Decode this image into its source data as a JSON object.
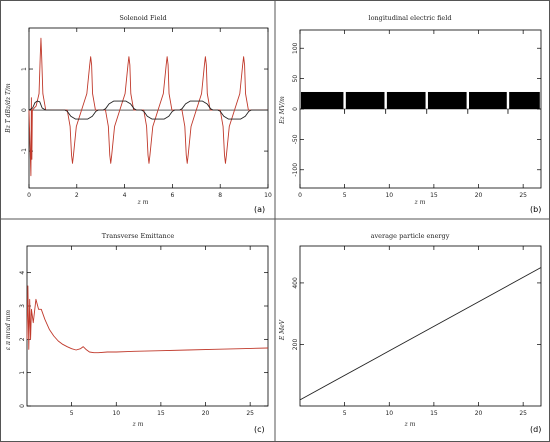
{
  "figure": {
    "frame_color": "#555555"
  },
  "chart_data": [
    {
      "type": "line",
      "panel": "a",
      "title": "Solenoid Field",
      "xlabel": "z m",
      "ylabel": "Bz T  dBz/dz T/m",
      "xlim": [
        0,
        10
      ],
      "ylim": [
        -1.9,
        2.0
      ],
      "xticks": [
        0,
        2,
        4,
        6,
        8,
        10
      ],
      "yticks": [
        -1,
        0,
        1
      ],
      "grid": false,
      "series": [
        {
          "color": "#c0392b",
          "x": [
            0.0,
            0.08,
            0.1,
            0.12,
            0.14,
            0.3,
            0.42,
            0.47,
            0.5,
            0.53,
            0.58,
            0.7,
            1.6,
            1.72,
            1.78,
            1.82,
            1.86,
            1.98,
            2.2,
            2.42,
            2.54,
            2.58,
            2.62,
            2.66,
            2.78,
            3.2,
            3.32,
            3.38,
            3.42,
            3.46,
            3.58,
            3.8,
            4.02,
            4.14,
            4.18,
            4.22,
            4.26,
            4.38,
            4.8,
            4.92,
            4.98,
            5.02,
            5.06,
            5.18,
            5.4,
            5.62,
            5.74,
            5.78,
            5.82,
            5.86,
            5.98,
            6.4,
            6.52,
            6.58,
            6.62,
            6.66,
            6.78,
            7.0,
            7.22,
            7.34,
            7.38,
            7.42,
            7.46,
            7.58,
            8.0,
            8.12,
            8.18,
            8.22,
            8.26,
            8.38,
            8.6,
            8.82,
            8.94,
            8.98,
            9.02,
            9.06,
            9.18,
            10.0
          ],
          "y": [
            0.0,
            -1.6,
            0.3,
            -1.2,
            0.0,
            0.1,
            0.4,
            1.3,
            1.75,
            1.3,
            0.4,
            0.0,
            0.0,
            -0.4,
            -1.1,
            -1.3,
            -1.1,
            -0.4,
            0.0,
            0.4,
            1.1,
            1.3,
            1.1,
            0.4,
            0.0,
            0.0,
            -0.4,
            -1.1,
            -1.3,
            -1.1,
            -0.4,
            0.0,
            0.4,
            1.1,
            1.3,
            1.1,
            0.4,
            0.0,
            0.0,
            -0.4,
            -1.1,
            -1.3,
            -1.1,
            -0.4,
            0.0,
            0.4,
            1.1,
            1.3,
            1.1,
            0.4,
            0.0,
            0.0,
            -0.4,
            -1.1,
            -1.3,
            -1.1,
            -0.4,
            0.0,
            0.4,
            1.1,
            1.3,
            1.1,
            0.4,
            0.0,
            0.0,
            -0.4,
            -1.1,
            -1.3,
            -1.1,
            -0.4,
            0.0,
            0.4,
            1.1,
            1.3,
            1.1,
            0.4,
            0.0,
            0.0
          ]
        },
        {
          "color": "#222222",
          "x": [
            0.0,
            0.15,
            0.25,
            0.35,
            0.45,
            0.55,
            0.7,
            1.5,
            1.6,
            1.75,
            1.95,
            2.45,
            2.65,
            2.8,
            2.9,
            3.1,
            3.2,
            3.35,
            3.55,
            4.05,
            4.25,
            4.4,
            4.5,
            4.7,
            4.8,
            4.95,
            5.15,
            5.65,
            5.85,
            6.0,
            6.1,
            6.3,
            6.4,
            6.55,
            6.75,
            7.25,
            7.45,
            7.6,
            7.7,
            7.9,
            8.0,
            8.15,
            8.35,
            8.85,
            9.05,
            9.2,
            9.3,
            10.0
          ],
          "y": [
            0.0,
            0.05,
            0.18,
            0.22,
            0.2,
            0.05,
            0.0,
            0.0,
            -0.03,
            -0.15,
            -0.22,
            -0.22,
            -0.15,
            -0.03,
            0.0,
            0.0,
            0.03,
            0.15,
            0.22,
            0.22,
            0.15,
            0.03,
            0.0,
            0.0,
            -0.03,
            -0.15,
            -0.22,
            -0.22,
            -0.15,
            -0.03,
            0.0,
            0.0,
            0.03,
            0.15,
            0.22,
            0.22,
            0.15,
            0.03,
            0.0,
            0.0,
            -0.03,
            -0.15,
            -0.22,
            -0.22,
            -0.15,
            -0.03,
            0.0,
            0.0
          ]
        }
      ]
    },
    {
      "type": "area",
      "panel": "b",
      "title": "longitudinal electric field",
      "xlabel": "z m",
      "ylabel": "Ez MV/m",
      "xlim": [
        0,
        27
      ],
      "ylim": [
        -130,
        130
      ],
      "xticks": [
        0,
        5,
        10,
        15,
        20,
        25
      ],
      "yticks": [
        -100,
        -50,
        0,
        50,
        100
      ],
      "grid": false,
      "band_low": 0,
      "band_high": 27,
      "gaps": [
        5,
        9.6,
        14.2,
        18.8,
        23.3
      ],
      "series": [
        {
          "color": "#000000"
        }
      ]
    },
    {
      "type": "line",
      "panel": "c",
      "title": "Transverse Emittance",
      "xlabel": "z m",
      "ylabel": "ε π mrad mm",
      "xlim": [
        0,
        27
      ],
      "ylim": [
        0,
        4.8
      ],
      "xticks": [
        5,
        10,
        15,
        20,
        25
      ],
      "yticks": [
        0,
        1,
        2,
        3,
        4
      ],
      "grid": false,
      "series": [
        {
          "color": "#c0392b",
          "x": [
            0.0,
            0.1,
            0.2,
            0.3,
            0.4,
            0.5,
            0.7,
            1.0,
            1.3,
            1.6,
            2.0,
            2.5,
            3.0,
            3.5,
            4.0,
            4.5,
            5.0,
            5.5,
            6.0,
            6.3,
            6.6,
            7.0,
            7.5,
            8.0,
            9.0,
            10.0,
            12.0,
            15.0,
            18.0,
            21.0,
            24.0,
            27.0
          ],
          "y": [
            2.0,
            3.6,
            1.7,
            3.2,
            2.0,
            2.9,
            2.5,
            3.2,
            2.9,
            2.9,
            2.6,
            2.3,
            2.1,
            1.95,
            1.85,
            1.78,
            1.72,
            1.68,
            1.72,
            1.78,
            1.7,
            1.62,
            1.6,
            1.6,
            1.62,
            1.62,
            1.64,
            1.66,
            1.68,
            1.7,
            1.72,
            1.74
          ]
        }
      ]
    },
    {
      "type": "line",
      "panel": "d",
      "title": "average particle energy",
      "xlabel": "z m",
      "ylabel": "E MeV",
      "xlim": [
        0,
        27
      ],
      "ylim": [
        0,
        520
      ],
      "xticks": [
        5,
        10,
        15,
        20,
        25
      ],
      "yticks": [
        200,
        400
      ],
      "grid": false,
      "series": [
        {
          "color": "#222222",
          "x": [
            0.0,
            27.0
          ],
          "y": [
            20.0,
            450.0
          ]
        }
      ]
    }
  ]
}
